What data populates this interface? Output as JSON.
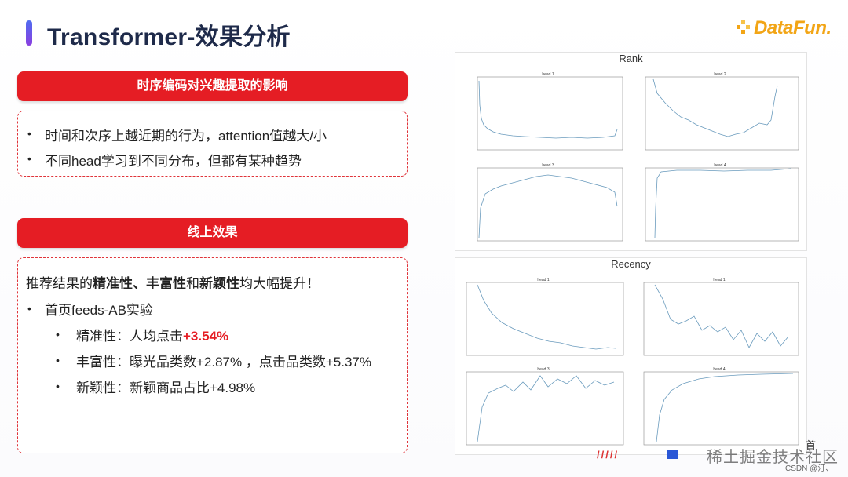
{
  "slide": {
    "title": "Transformer-效果分析",
    "logo": "DataFun.",
    "sections": [
      {
        "header": "时序编码对兴趣提取的影响",
        "bullets": [
          "时间和次序上越近期的行为，attention值越大/小",
          "不同head学习到不同分布，但都有某种趋势"
        ]
      },
      {
        "header": "线上效果",
        "intro": {
          "pre": "推荐结果的",
          "b1": "精准性",
          "sep1": "、",
          "b2": "丰富性",
          "mid": "和",
          "b3": "新颖性",
          "post": "均大幅提升！"
        },
        "bullet": "首页feeds-AB实验",
        "sub": {
          "precision_label": "精准性：人均点击",
          "precision_value": "+3.54%",
          "richness": "丰富性：曝光品类数+2.87% ，点击品类数+5.37%",
          "novelty": "新颖性：新颖商品占比+4.98%"
        }
      }
    ],
    "bullet_symbol": "•"
  },
  "charts": {
    "rank_title": "Rank",
    "recency_title": "Recency",
    "subplot_titles": [
      "head 1",
      "head 2",
      "head 3",
      "head 4"
    ],
    "line_color": "#6a9bbd"
  },
  "watermark": {
    "main": "稀土掘金技术社区",
    "csdn": "CSDN @汀、",
    "stray": "首"
  }
}
